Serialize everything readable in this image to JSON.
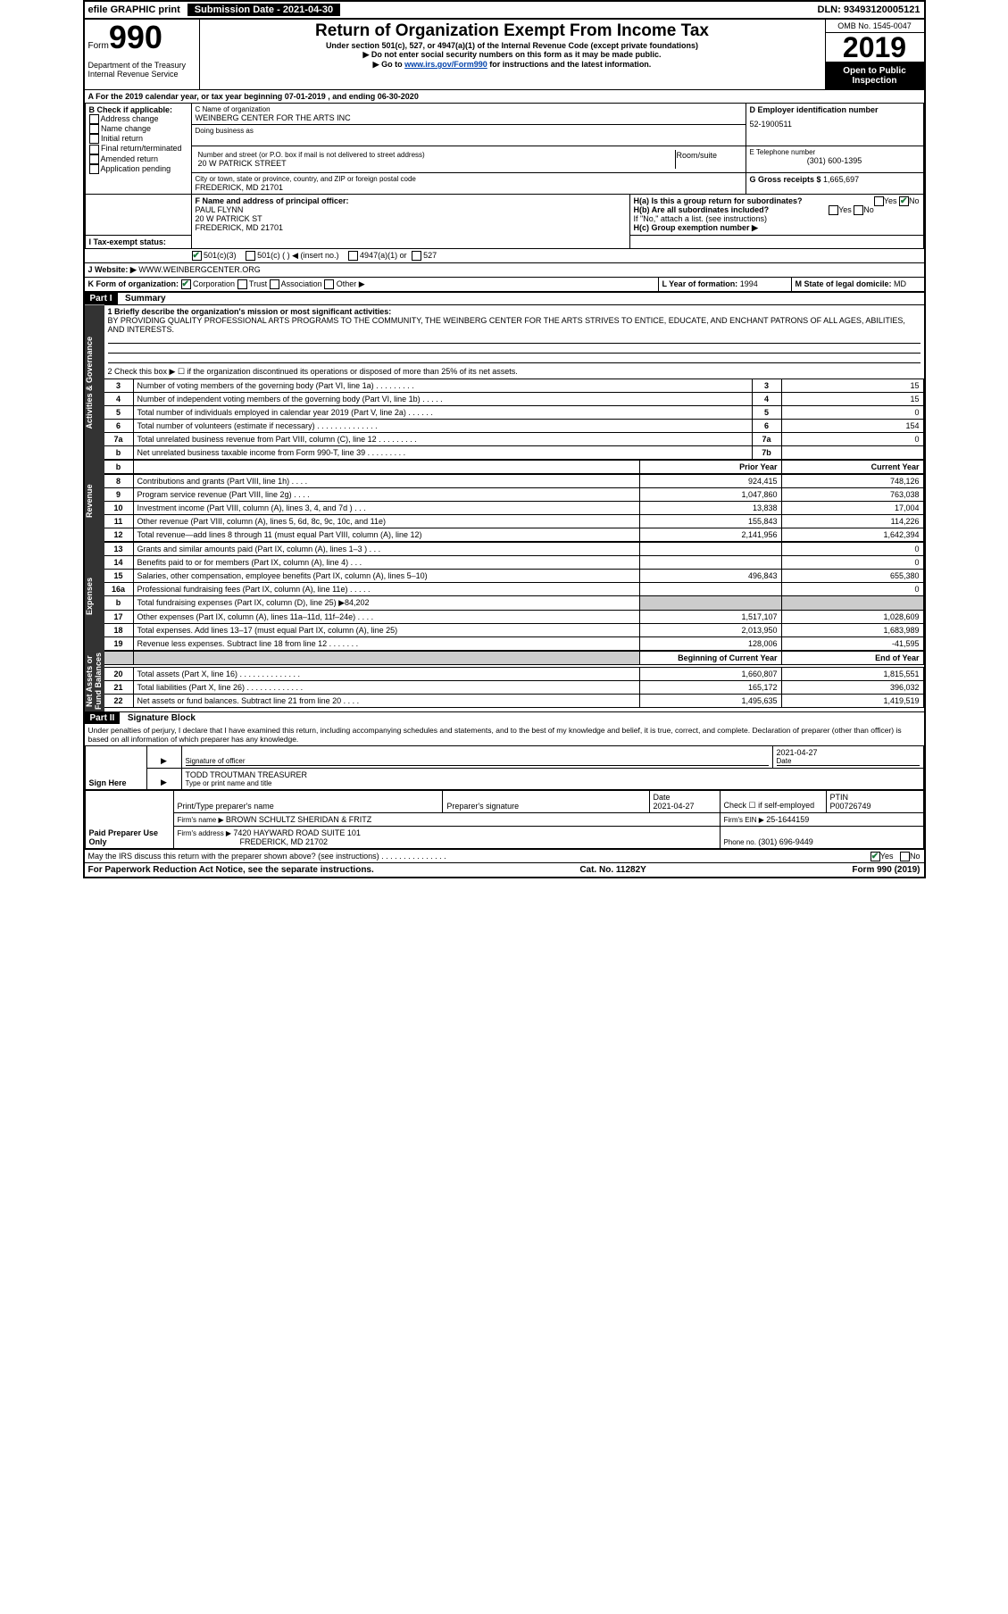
{
  "top": {
    "efile": "efile GRAPHIC print",
    "sub_date_label": "Submission Date - 2021-04-30",
    "dln": "DLN: 93493120005121"
  },
  "header": {
    "form_label": "Form",
    "form_num": "990",
    "dept": "Department of the Treasury\nInternal Revenue Service",
    "title": "Return of Organization Exempt From Income Tax",
    "sub1": "Under section 501(c), 527, or 4947(a)(1) of the Internal Revenue Code (except private foundations)",
    "sub2": "▶ Do not enter social security numbers on this form as it may be made public.",
    "sub3_pre": "▶ Go to ",
    "sub3_link": "www.irs.gov/Form990",
    "sub3_post": " for instructions and the latest information.",
    "omb": "OMB No. 1545-0047",
    "year": "2019",
    "open": "Open to Public Inspection"
  },
  "period": {
    "text": "A For the 2019 calendar year, or tax year beginning 07-01-2019    , and ending 06-30-2020"
  },
  "blockB": {
    "label": "B Check if applicable:",
    "opts": [
      "Address change",
      "Name change",
      "Initial return",
      "Final return/terminated",
      "Amended return",
      "Application pending"
    ]
  },
  "blockC": {
    "name_label": "C Name of organization",
    "org_name": "WEINBERG CENTER FOR THE ARTS INC",
    "dba_label": "Doing business as",
    "addr_label": "Number and street (or P.O. box if mail is not delivered to street address)",
    "room_label": "Room/suite",
    "addr": "20 W PATRICK STREET",
    "city_label": "City or town, state or province, country, and ZIP or foreign postal code",
    "city": "FREDERICK, MD  21701"
  },
  "blockD": {
    "ein_label": "D Employer identification number",
    "ein": "52-1900511",
    "phone_label": "E Telephone number",
    "phone": "(301) 600-1395",
    "gross_label": "G Gross receipts $ ",
    "gross": "1,665,697"
  },
  "blockF": {
    "label": "F  Name and address of principal officer:",
    "name": "PAUL FLYNN",
    "addr1": "20 W PATRICK ST",
    "addr2": "FREDERICK, MD  21701"
  },
  "blockH": {
    "ha": "H(a)  Is this a group return for subordinates?",
    "hb": "H(b)  Are all subordinates included?",
    "hb_note": "If \"No,\" attach a list. (see instructions)",
    "hc": "H(c)  Group exemption number ▶",
    "yes": "Yes",
    "no": "No"
  },
  "taxStatus": {
    "label": "I  Tax-exempt status:",
    "c3": "501(c)(3)",
    "c": "501(c) (  ) ◀ (insert no.)",
    "a1": "4947(a)(1) or",
    "s527": "527"
  },
  "site": {
    "label": "J  Website: ▶",
    "url": "WWW.WEINBERGCENTER.ORG"
  },
  "formK": {
    "label": "K Form of organization:",
    "corp": "Corporation",
    "trust": "Trust",
    "assoc": "Association",
    "other": "Other ▶",
    "L": "L Year of formation: ",
    "L_val": "1994",
    "M": "M State of legal domicile: ",
    "M_val": "MD"
  },
  "part1": {
    "tag": "Part I",
    "title": "Summary",
    "l1_label": "1  Briefly describe the organization's mission or most significant activities:",
    "l1_text": "BY PROVIDING QUALITY PROFESSIONAL ARTS PROGRAMS TO THE COMMUNITY, THE WEINBERG CENTER FOR THE ARTS STRIVES TO ENTICE, EDUCATE, AND ENCHANT PATRONS OF ALL AGES, ABILITIES, AND INTERESTS.",
    "l2": "2   Check this box ▶ ☐  if the organization discontinued its operations or disposed of more than 25% of its net assets.",
    "rows": [
      {
        "n": "3",
        "d": "Number of voting members of the governing body (Part VI, line 1a)  .   .   .   .   .   .   .   .   .",
        "b": "3",
        "v": "15"
      },
      {
        "n": "4",
        "d": "Number of independent voting members of the governing body (Part VI, line 1b)  .   .   .   .   .",
        "b": "4",
        "v": "15"
      },
      {
        "n": "5",
        "d": "Total number of individuals employed in calendar year 2019 (Part V, line 2a)  .   .   .   .   .   .",
        "b": "5",
        "v": "0"
      },
      {
        "n": "6",
        "d": "Total number of volunteers (estimate if necessary)   .   .   .   .   .   .   .   .   .   .   .   .   .   .",
        "b": "6",
        "v": "154"
      },
      {
        "n": "7a",
        "d": "Total unrelated business revenue from Part VIII, column (C), line 12  .   .   .   .   .   .   .   .   .",
        "b": "7a",
        "v": "0"
      },
      {
        "n": "b",
        "d": "Net unrelated business taxable income from Form 990-T, line 39   .   .   .   .   .   .   .   .   .",
        "b": "7b",
        "v": ""
      }
    ],
    "revHeader": {
      "prior": "Prior Year",
      "curr": "Current Year"
    },
    "revenue": [
      {
        "n": "8",
        "d": "Contributions and grants (Part VIII, line 1h)   .   .   .   .",
        "p": "924,415",
        "c": "748,126"
      },
      {
        "n": "9",
        "d": "Program service revenue (Part VIII, line 2g)   .   .   .   .",
        "p": "1,047,860",
        "c": "763,038"
      },
      {
        "n": "10",
        "d": "Investment income (Part VIII, column (A), lines 3, 4, and 7d )   .   .   .",
        "p": "13,838",
        "c": "17,004"
      },
      {
        "n": "11",
        "d": "Other revenue (Part VIII, column (A), lines 5, 6d, 8c, 9c, 10c, and 11e)",
        "p": "155,843",
        "c": "114,226"
      },
      {
        "n": "12",
        "d": "Total revenue—add lines 8 through 11 (must equal Part VIII, column (A), line 12)",
        "p": "2,141,956",
        "c": "1,642,394"
      }
    ],
    "expenses": [
      {
        "n": "13",
        "d": "Grants and similar amounts paid (Part IX, column (A), lines 1–3 )  .   .   .",
        "p": "",
        "c": "0"
      },
      {
        "n": "14",
        "d": "Benefits paid to or for members (Part IX, column (A), line 4)  .   .   .",
        "p": "",
        "c": "0"
      },
      {
        "n": "15",
        "d": "Salaries, other compensation, employee benefits (Part IX, column (A), lines 5–10)",
        "p": "496,843",
        "c": "655,380"
      },
      {
        "n": "16a",
        "d": "Professional fundraising fees (Part IX, column (A), line 11e)  .   .   .   .   .",
        "p": "",
        "c": "0"
      },
      {
        "n": "b",
        "d": "Total fundraising expenses (Part IX, column (D), line 25) ▶84,202",
        "p": "grey",
        "c": "grey"
      },
      {
        "n": "17",
        "d": "Other expenses (Part IX, column (A), lines 11a–11d, 11f–24e)  .   .   .   .",
        "p": "1,517,107",
        "c": "1,028,609"
      },
      {
        "n": "18",
        "d": "Total expenses. Add lines 13–17 (must equal Part IX, column (A), line 25)",
        "p": "2,013,950",
        "c": "1,683,989"
      },
      {
        "n": "19",
        "d": "Revenue less expenses. Subtract line 18 from line 12 .   .   .   .   .   .   .",
        "p": "128,006",
        "c": "-41,595"
      }
    ],
    "naHeader": {
      "beg": "Beginning of Current Year",
      "end": "End of Year"
    },
    "netassets": [
      {
        "n": "20",
        "d": "Total assets (Part X, line 16)  .   .   .   .   .   .   .   .   .   .   .   .   .   .",
        "p": "1,660,807",
        "c": "1,815,551"
      },
      {
        "n": "21",
        "d": "Total liabilities (Part X, line 26)  .   .   .   .   .   .   .   .   .   .   .   .   .",
        "p": "165,172",
        "c": "396,032"
      },
      {
        "n": "22",
        "d": "Net assets or fund balances. Subtract line 21 from line 20  .   .   .   .",
        "p": "1,495,635",
        "c": "1,419,519"
      }
    ],
    "tabs": {
      "act": "Activities & Governance",
      "rev": "Revenue",
      "exp": "Expenses",
      "na": "Net Assets or\nFund Balances"
    }
  },
  "part2": {
    "tag": "Part II",
    "title": "Signature Block",
    "penalty": "Under penalties of perjury, I declare that I have examined this return, including accompanying schedules and statements, and to the best of my knowledge and belief, it is true, correct, and complete. Declaration of preparer (other than officer) is based on all information of which preparer has any knowledge.",
    "sign_here": "Sign Here",
    "sig_officer": "Signature of officer",
    "sig_date": "2021-04-27",
    "date_label": "Date",
    "officer_name": "TODD TROUTMAN  TREASURER",
    "officer_type": "Type or print name and title",
    "paid": "Paid Preparer Use Only",
    "prep_name_label": "Print/Type preparer's name",
    "prep_sig_label": "Preparer's signature",
    "prep_date": "2021-04-27",
    "check_self": "Check ☐ if self-employed",
    "ptin_label": "PTIN",
    "ptin": "P00726749",
    "firm_name_label": "Firm's name    ▶ ",
    "firm_name": "BROWN SCHULTZ SHERIDAN & FRITZ",
    "firm_ein_label": "Firm's EIN ▶ ",
    "firm_ein": "25-1644159",
    "firm_addr_label": "Firm's address ▶ ",
    "firm_addr1": "7420 HAYWARD ROAD SUITE 101",
    "firm_addr2": "FREDERICK, MD  21702",
    "firm_phone_label": "Phone no. ",
    "firm_phone": "(301) 696-9449",
    "discuss": "May the IRS discuss this return with the preparer shown above? (see instructions)   .   .   .   .   .   .   .   .   .   .   .   .   .   .   .",
    "discuss_yes": "Yes",
    "discuss_no": "No"
  },
  "footer": {
    "pra": "For Paperwork Reduction Act Notice, see the separate instructions.",
    "cat": "Cat. No. 11282Y",
    "form": "Form 990 (2019)"
  }
}
